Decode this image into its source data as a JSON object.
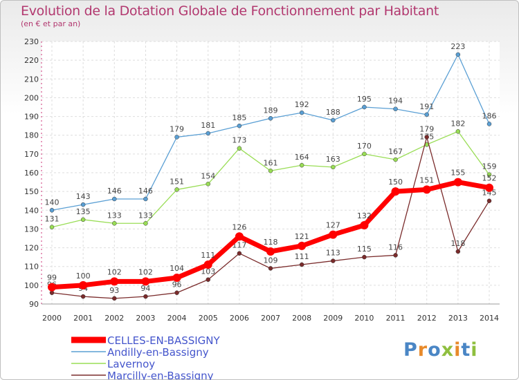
{
  "title": "Evolution de la Dotation Globale de Fonctionnement par Habitant",
  "subtitle": "(en € et par an)",
  "logo": {
    "text": "Proxiti",
    "colors": [
      "#4a86c5",
      "#e88a2b",
      "#4a86c5",
      "#8fbf3f",
      "#e88a2b",
      "#4a86c5",
      "#8fbf3f"
    ]
  },
  "chart_data": {
    "type": "line",
    "x": [
      "2000",
      "2001",
      "2002",
      "2003",
      "2004",
      "2005",
      "2006",
      "2007",
      "2008",
      "2009",
      "2010",
      "2011",
      "2012",
      "2013",
      "2014"
    ],
    "ylim": [
      90,
      230
    ],
    "yticks": [
      90,
      100,
      110,
      120,
      130,
      140,
      150,
      160,
      170,
      180,
      190,
      200,
      210,
      220,
      230
    ],
    "grid": true,
    "legend_position": "bottom-left",
    "series": [
      {
        "name": "CELLES-EN-BASSIGNY",
        "color": "#ff0000",
        "emphasis": true,
        "values": [
          99,
          100,
          102,
          102,
          104,
          111,
          126,
          118,
          121,
          127,
          132,
          150,
          151,
          155,
          152
        ]
      },
      {
        "name": "Andilly-en-Bassigny",
        "color": "#5a9fd4",
        "values": [
          140,
          143,
          146,
          146,
          179,
          181,
          185,
          189,
          192,
          188,
          195,
          194,
          191,
          223,
          186
        ]
      },
      {
        "name": "Lavernoy",
        "color": "#99dd55",
        "values": [
          131,
          135,
          133,
          133,
          151,
          154,
          173,
          161,
          164,
          163,
          170,
          167,
          175,
          182,
          159
        ]
      },
      {
        "name": "Marcilly-en-Bassigny",
        "color": "#7a2b2b",
        "values": [
          96,
          94,
          93,
          94,
          96,
          103,
          117,
          109,
          111,
          113,
          115,
          116,
          179,
          118,
          145
        ]
      }
    ]
  }
}
